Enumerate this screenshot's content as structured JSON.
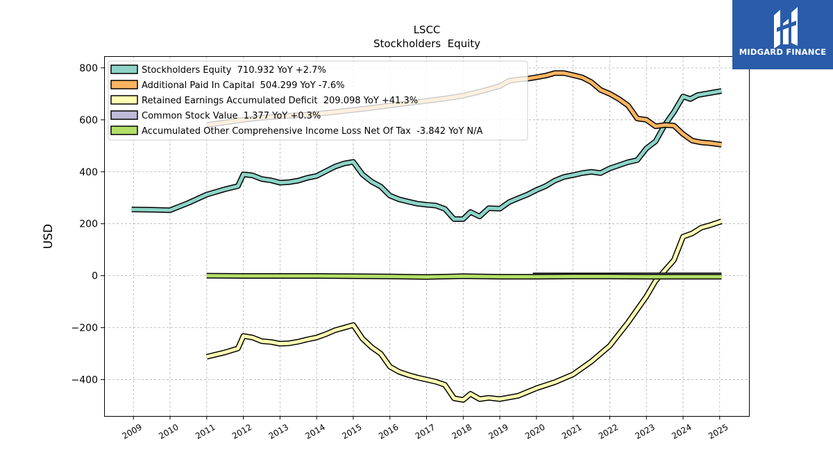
{
  "brand": {
    "name": "MIDGARD FINANCE",
    "bg_color": "#2a5caa"
  },
  "chart_data": {
    "type": "line",
    "title": "LSCC",
    "subtitle": "Stockholders  Equity",
    "ylabel": "USD",
    "xlabel": "",
    "ylim": [
      -540,
      845
    ],
    "xlim": [
      2008.2,
      2025.8
    ],
    "yticks": [
      -400,
      -200,
      0,
      200,
      400,
      600,
      800
    ],
    "ytick_labels": [
      "−400",
      "−200",
      "0",
      "200",
      "400",
      "600",
      "800"
    ],
    "xticks": [
      2009,
      2010,
      2011,
      2012,
      2013,
      2014,
      2015,
      2016,
      2017,
      2018,
      2019,
      2020,
      2021,
      2022,
      2023,
      2024,
      2025
    ],
    "xtick_labels": [
      "2009",
      "2010",
      "2011",
      "2012",
      "2013",
      "2014",
      "2015",
      "2016",
      "2017",
      "2018",
      "2019",
      "2020",
      "2021",
      "2022",
      "2023",
      "2024",
      "2025"
    ],
    "grid": true,
    "legend_position": "top-left",
    "series": [
      {
        "name": "Stockholders Equity  710.932 YoY +2.7%",
        "color": "#8dd3c7",
        "points": [
          [
            2008.95,
            255
          ],
          [
            2009.5,
            254
          ],
          [
            2010.0,
            252
          ],
          [
            2010.5,
            280
          ],
          [
            2011.0,
            312
          ],
          [
            2011.5,
            333
          ],
          [
            2011.85,
            345
          ],
          [
            2012.0,
            390
          ],
          [
            2012.25,
            386
          ],
          [
            2012.5,
            372
          ],
          [
            2012.75,
            367
          ],
          [
            2013.0,
            358
          ],
          [
            2013.25,
            360
          ],
          [
            2013.5,
            366
          ],
          [
            2013.75,
            377
          ],
          [
            2014.0,
            384
          ],
          [
            2014.25,
            402
          ],
          [
            2014.5,
            420
          ],
          [
            2014.75,
            432
          ],
          [
            2015.0,
            438
          ],
          [
            2015.25,
            390
          ],
          [
            2015.5,
            362
          ],
          [
            2015.75,
            343
          ],
          [
            2016.0,
            308
          ],
          [
            2016.25,
            294
          ],
          [
            2016.5,
            285
          ],
          [
            2016.75,
            277
          ],
          [
            2017.0,
            273
          ],
          [
            2017.25,
            270
          ],
          [
            2017.5,
            257
          ],
          [
            2017.75,
            218
          ],
          [
            2018.0,
            218
          ],
          [
            2018.2,
            245
          ],
          [
            2018.45,
            228
          ],
          [
            2018.7,
            260
          ],
          [
            2019.0,
            258
          ],
          [
            2019.25,
            283
          ],
          [
            2019.5,
            298
          ],
          [
            2019.75,
            312
          ],
          [
            2020.0,
            330
          ],
          [
            2020.25,
            345
          ],
          [
            2020.5,
            366
          ],
          [
            2020.75,
            380
          ],
          [
            2021.0,
            387
          ],
          [
            2021.25,
            395
          ],
          [
            2021.5,
            400
          ],
          [
            2021.75,
            395
          ],
          [
            2022.0,
            413
          ],
          [
            2022.25,
            425
          ],
          [
            2022.5,
            437
          ],
          [
            2022.75,
            445
          ],
          [
            2023.0,
            490
          ],
          [
            2023.25,
            517
          ],
          [
            2023.5,
            580
          ],
          [
            2023.75,
            630
          ],
          [
            2024.0,
            690
          ],
          [
            2024.2,
            680
          ],
          [
            2024.4,
            695
          ],
          [
            2024.6,
            700
          ],
          [
            2024.8,
            705
          ],
          [
            2025.05,
            710.932
          ]
        ]
      },
      {
        "name": "Additional Paid In Capital  504.299 YoY -7.6%",
        "color": "#fdb462",
        "points": [
          [
            2011.0,
            580
          ],
          [
            2011.5,
            590
          ],
          [
            2012.0,
            600
          ],
          [
            2012.5,
            608
          ],
          [
            2013.0,
            613
          ],
          [
            2013.5,
            618
          ],
          [
            2014.0,
            623
          ],
          [
            2014.5,
            630
          ],
          [
            2015.0,
            638
          ],
          [
            2015.5,
            646
          ],
          [
            2016.0,
            655
          ],
          [
            2016.5,
            664
          ],
          [
            2017.0,
            673
          ],
          [
            2017.5,
            682
          ],
          [
            2018.0,
            693
          ],
          [
            2018.5,
            710
          ],
          [
            2019.0,
            730
          ],
          [
            2019.25,
            750
          ],
          [
            2019.5,
            755
          ],
          [
            2019.75,
            758
          ],
          [
            2020.0,
            764
          ],
          [
            2020.25,
            770
          ],
          [
            2020.5,
            780
          ],
          [
            2020.75,
            780
          ],
          [
            2021.0,
            772
          ],
          [
            2021.25,
            763
          ],
          [
            2021.5,
            745
          ],
          [
            2021.75,
            715
          ],
          [
            2022.0,
            700
          ],
          [
            2022.25,
            680
          ],
          [
            2022.5,
            655
          ],
          [
            2022.75,
            605
          ],
          [
            2023.0,
            600
          ],
          [
            2023.25,
            575
          ],
          [
            2023.5,
            580
          ],
          [
            2023.75,
            578
          ],
          [
            2024.0,
            545
          ],
          [
            2024.25,
            520
          ],
          [
            2024.5,
            513
          ],
          [
            2024.75,
            510
          ],
          [
            2025.05,
            504.299
          ]
        ]
      },
      {
        "name": "Retained Earnings Accumulated Deficit  209.098 YoY +41.3%",
        "color": "#ffffb3",
        "points": [
          [
            2011.0,
            -312
          ],
          [
            2011.5,
            -295
          ],
          [
            2011.85,
            -280
          ],
          [
            2012.0,
            -232
          ],
          [
            2012.25,
            -238
          ],
          [
            2012.5,
            -252
          ],
          [
            2012.75,
            -255
          ],
          [
            2013.0,
            -262
          ],
          [
            2013.25,
            -260
          ],
          [
            2013.5,
            -254
          ],
          [
            2013.75,
            -245
          ],
          [
            2014.0,
            -238
          ],
          [
            2014.25,
            -225
          ],
          [
            2014.5,
            -210
          ],
          [
            2014.75,
            -200
          ],
          [
            2015.0,
            -190
          ],
          [
            2015.25,
            -242
          ],
          [
            2015.5,
            -275
          ],
          [
            2015.75,
            -300
          ],
          [
            2016.0,
            -350
          ],
          [
            2016.25,
            -370
          ],
          [
            2016.5,
            -382
          ],
          [
            2016.75,
            -392
          ],
          [
            2017.0,
            -400
          ],
          [
            2017.25,
            -408
          ],
          [
            2017.5,
            -420
          ],
          [
            2017.75,
            -472
          ],
          [
            2018.0,
            -478
          ],
          [
            2018.2,
            -455
          ],
          [
            2018.45,
            -475
          ],
          [
            2018.7,
            -470
          ],
          [
            2019.0,
            -475
          ],
          [
            2019.5,
            -462
          ],
          [
            2020.0,
            -433
          ],
          [
            2020.5,
            -410
          ],
          [
            2021.0,
            -380
          ],
          [
            2021.5,
            -330
          ],
          [
            2022.0,
            -270
          ],
          [
            2022.5,
            -180
          ],
          [
            2023.0,
            -80
          ],
          [
            2023.25,
            -20
          ],
          [
            2023.5,
            20
          ],
          [
            2023.75,
            60
          ],
          [
            2024.0,
            150
          ],
          [
            2024.25,
            163
          ],
          [
            2024.5,
            185
          ],
          [
            2024.75,
            195
          ],
          [
            2025.05,
            209.098
          ]
        ]
      },
      {
        "name": "Common Stock Value  1.377 YoY +0.3%",
        "color": "#bebada",
        "points": [
          [
            2019.9,
            1.2
          ],
          [
            2020.5,
            1.25
          ],
          [
            2021.0,
            1.28
          ],
          [
            2021.5,
            1.3
          ],
          [
            2022.0,
            1.32
          ],
          [
            2022.5,
            1.33
          ],
          [
            2023.0,
            1.35
          ],
          [
            2023.5,
            1.36
          ],
          [
            2024.0,
            1.37
          ],
          [
            2024.5,
            1.37
          ],
          [
            2025.05,
            1.377
          ]
        ]
      },
      {
        "name": "Accumulated Other Comprehensive Income Loss Net Of Tax  -3.842 YoY N/A",
        "color": "#b3de69",
        "points": [
          [
            2011.0,
            0
          ],
          [
            2012.0,
            -1
          ],
          [
            2013.0,
            -1
          ],
          [
            2014.0,
            -1
          ],
          [
            2015.0,
            -2
          ],
          [
            2016.0,
            -3
          ],
          [
            2017.0,
            -5
          ],
          [
            2018.0,
            -2
          ],
          [
            2019.0,
            -4
          ],
          [
            2020.0,
            -4
          ],
          [
            2021.0,
            -3
          ],
          [
            2022.0,
            -3
          ],
          [
            2023.0,
            -4
          ],
          [
            2024.0,
            -4
          ],
          [
            2024.5,
            -4
          ],
          [
            2025.05,
            -3.842
          ]
        ]
      }
    ]
  }
}
